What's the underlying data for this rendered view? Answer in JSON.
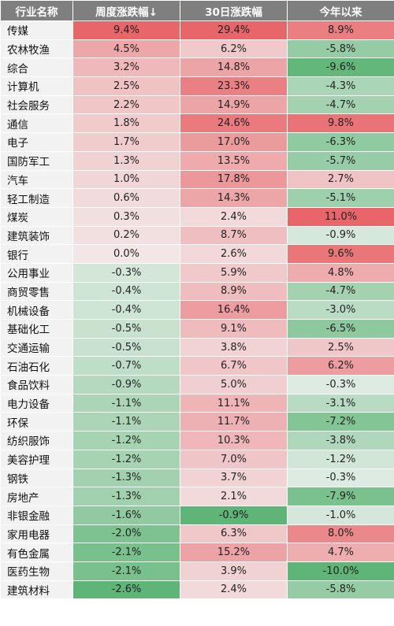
{
  "chart_data": {
    "type": "table",
    "headers": [
      "行业名称",
      "周度涨跌幅↓",
      "30日涨跌幅",
      "今年以来"
    ],
    "rows": [
      {
        "name": "传媒",
        "week": 9.4,
        "d30": 29.4,
        "ytd": 8.9
      },
      {
        "name": "农林牧渔",
        "week": 4.5,
        "d30": 6.2,
        "ytd": -5.8
      },
      {
        "name": "综合",
        "week": 3.2,
        "d30": 14.8,
        "ytd": -9.6
      },
      {
        "name": "计算机",
        "week": 2.5,
        "d30": 23.3,
        "ytd": -4.3
      },
      {
        "name": "社会服务",
        "week": 2.2,
        "d30": 14.9,
        "ytd": -4.7
      },
      {
        "name": "通信",
        "week": 1.8,
        "d30": 24.6,
        "ytd": 9.8
      },
      {
        "name": "电子",
        "week": 1.7,
        "d30": 17.0,
        "ytd": -6.3
      },
      {
        "name": "国防军工",
        "week": 1.3,
        "d30": 13.5,
        "ytd": -5.7
      },
      {
        "name": "汽车",
        "week": 1.0,
        "d30": 17.8,
        "ytd": 2.7
      },
      {
        "name": "轻工制造",
        "week": 0.6,
        "d30": 14.3,
        "ytd": -5.1
      },
      {
        "name": "煤炭",
        "week": 0.3,
        "d30": 2.4,
        "ytd": 11.0
      },
      {
        "name": "建筑装饰",
        "week": 0.2,
        "d30": 8.7,
        "ytd": -0.9
      },
      {
        "name": "银行",
        "week": 0.0,
        "d30": 2.6,
        "ytd": 9.6
      },
      {
        "name": "公用事业",
        "week": -0.3,
        "d30": 5.9,
        "ytd": 4.8
      },
      {
        "name": "商贸零售",
        "week": -0.4,
        "d30": 8.9,
        "ytd": -4.7
      },
      {
        "name": "机械设备",
        "week": -0.4,
        "d30": 16.4,
        "ytd": -3.0
      },
      {
        "name": "基础化工",
        "week": -0.5,
        "d30": 9.1,
        "ytd": -6.5
      },
      {
        "name": "交通运输",
        "week": -0.5,
        "d30": 3.8,
        "ytd": 2.5
      },
      {
        "name": "石油石化",
        "week": -0.7,
        "d30": 6.7,
        "ytd": 6.2
      },
      {
        "name": "食品饮料",
        "week": -0.9,
        "d30": 5.0,
        "ytd": -0.3
      },
      {
        "name": "电力设备",
        "week": -1.1,
        "d30": 11.1,
        "ytd": -3.1
      },
      {
        "name": "环保",
        "week": -1.1,
        "d30": 11.7,
        "ytd": -7.2
      },
      {
        "name": "纺织服饰",
        "week": -1.2,
        "d30": 10.3,
        "ytd": -3.8
      },
      {
        "name": "美容护理",
        "week": -1.2,
        "d30": 7.0,
        "ytd": -1.2
      },
      {
        "name": "钢铁",
        "week": -1.3,
        "d30": 3.7,
        "ytd": -0.3
      },
      {
        "name": "房地产",
        "week": -1.3,
        "d30": 2.1,
        "ytd": -7.9
      },
      {
        "name": "非银金融",
        "week": -1.6,
        "d30": -0.9,
        "ytd": -1.0
      },
      {
        "name": "家用电器",
        "week": -2.0,
        "d30": 6.3,
        "ytd": 8.0
      },
      {
        "name": "有色金属",
        "week": -2.1,
        "d30": 15.2,
        "ytd": 4.7
      },
      {
        "name": "医药生物",
        "week": -2.1,
        "d30": 3.9,
        "ytd": -10.0
      },
      {
        "name": "建筑材料",
        "week": -2.6,
        "d30": 2.4,
        "ytd": -5.8
      }
    ],
    "color_positive": "#e8666a",
    "color_negative": "#5fb577",
    "color_neutral": "#f4f4f4"
  }
}
